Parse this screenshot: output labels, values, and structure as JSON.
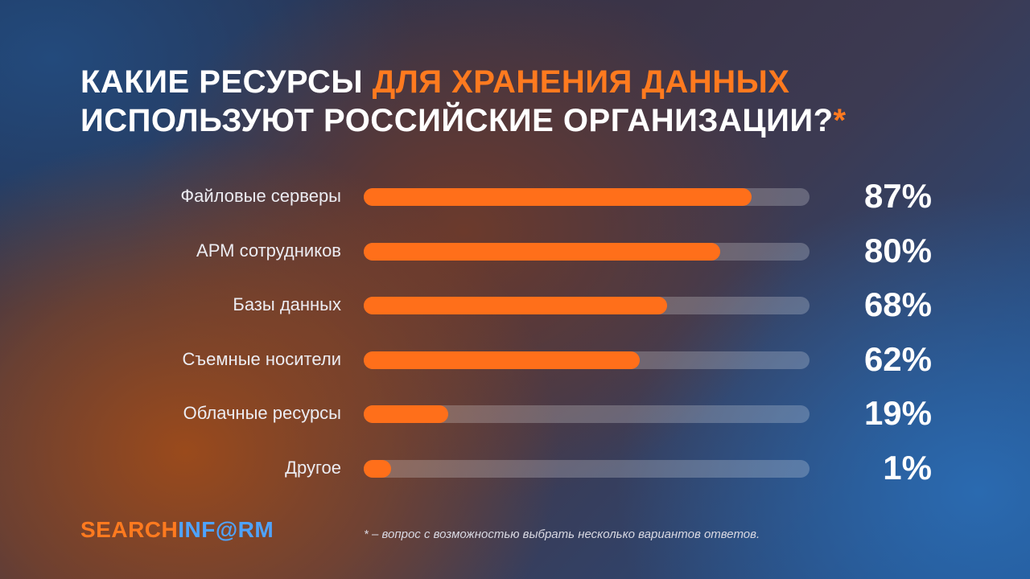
{
  "title": {
    "line1_white": "КАКИЕ РЕСУРСЫ ",
    "line1_accent": "ДЛЯ ХРАНЕНИЯ ДАННЫХ",
    "line2_white": "ИСПОЛЬЗУЮТ РОССИЙСКИЕ ОРГАНИЗАЦИИ?",
    "line2_accent": "*"
  },
  "chart_data": {
    "type": "bar",
    "orientation": "horizontal",
    "categories": [
      "Файловые серверы",
      "АРМ сотрудников",
      "Базы данных",
      "Съемные носители",
      "Облачные ресурсы",
      "Другое"
    ],
    "values": [
      87,
      80,
      68,
      62,
      19,
      1
    ],
    "value_labels": [
      "87%",
      "80%",
      "68%",
      "62%",
      "19%",
      "1%"
    ],
    "xlim": [
      0,
      100
    ],
    "grid": false,
    "legend": "none"
  },
  "logo": {
    "part1": "SEARCH",
    "part2": "INF@RM"
  },
  "footnote": "* – вопрос с возможностью выбрать несколько вариантов ответов.",
  "colors": {
    "accent": "#ff6f1a",
    "track": "#8a7f90",
    "logo_blue": "#4ea3ff"
  }
}
